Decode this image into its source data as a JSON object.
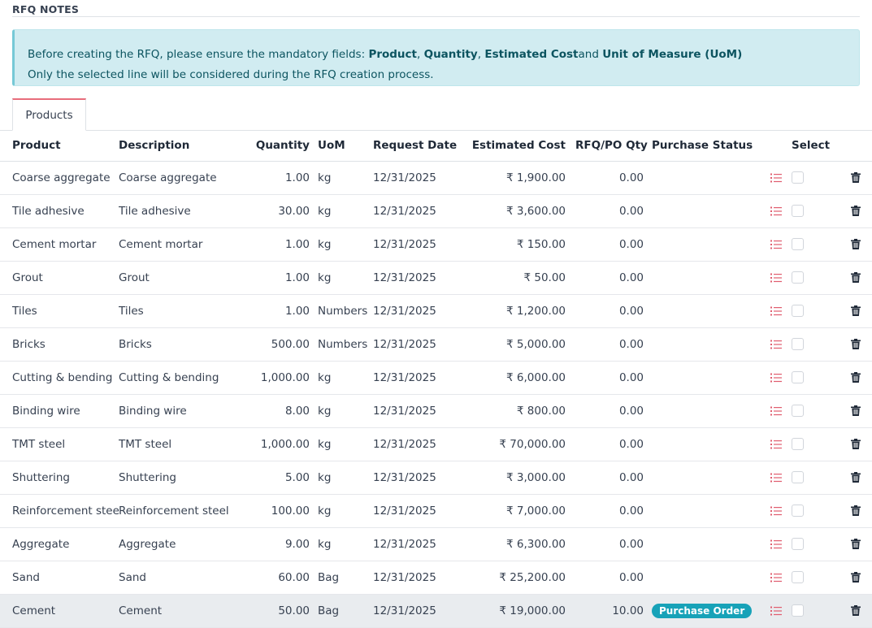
{
  "section": {
    "title": "RFQ NOTES"
  },
  "alert": {
    "line1_prefix": "Before creating the RFQ, please ensure the mandatory fields: ",
    "field_product": "Product",
    "sep1": ", ",
    "field_quantity": "Quantity",
    "sep2": ", ",
    "field_cost": "Estimated Cost",
    "sep3": "and ",
    "field_uom": "Unit of Measure (UoM)",
    "line2": "Only the selected line will be considered during the RFQ creation process."
  },
  "tabs": [
    {
      "label": "Products",
      "active": true
    }
  ],
  "table": {
    "headers": {
      "product": "Product",
      "description": "Description",
      "quantity": "Quantity",
      "uom": "UoM",
      "request_date": "Request Date",
      "estimated_cost": "Estimated Cost",
      "rfq_po_qty": "RFQ/PO Qty",
      "purchase_status": "Purchase Status",
      "select": "Select"
    },
    "rows": [
      {
        "product": "Coarse aggregate",
        "description": "Coarse aggregate",
        "quantity": "1.00",
        "uom": "kg",
        "request_date": "12/31/2025",
        "estimated_cost": "₹ 1,900.00",
        "rfq_po_qty": "0.00",
        "purchase_status": ""
      },
      {
        "product": "Tile adhesive",
        "description": "Tile adhesive",
        "quantity": "30.00",
        "uom": "kg",
        "request_date": "12/31/2025",
        "estimated_cost": "₹ 3,600.00",
        "rfq_po_qty": "0.00",
        "purchase_status": ""
      },
      {
        "product": "Cement mortar",
        "description": "Cement mortar",
        "quantity": "1.00",
        "uom": "kg",
        "request_date": "12/31/2025",
        "estimated_cost": "₹ 150.00",
        "rfq_po_qty": "0.00",
        "purchase_status": ""
      },
      {
        "product": "Grout",
        "description": "Grout",
        "quantity": "1.00",
        "uom": "kg",
        "request_date": "12/31/2025",
        "estimated_cost": "₹ 50.00",
        "rfq_po_qty": "0.00",
        "purchase_status": ""
      },
      {
        "product": "Tiles",
        "description": "Tiles",
        "quantity": "1.00",
        "uom": "Numbers",
        "request_date": "12/31/2025",
        "estimated_cost": "₹ 1,200.00",
        "rfq_po_qty": "0.00",
        "purchase_status": ""
      },
      {
        "product": "Bricks",
        "description": "Bricks",
        "quantity": "500.00",
        "uom": "Numbers",
        "request_date": "12/31/2025",
        "estimated_cost": "₹ 5,000.00",
        "rfq_po_qty": "0.00",
        "purchase_status": ""
      },
      {
        "product": "Cutting & bending",
        "description": "Cutting & bending",
        "quantity": "1,000.00",
        "uom": "kg",
        "request_date": "12/31/2025",
        "estimated_cost": "₹ 6,000.00",
        "rfq_po_qty": "0.00",
        "purchase_status": ""
      },
      {
        "product": "Binding wire",
        "description": "Binding wire",
        "quantity": "8.00",
        "uom": "kg",
        "request_date": "12/31/2025",
        "estimated_cost": "₹ 800.00",
        "rfq_po_qty": "0.00",
        "purchase_status": ""
      },
      {
        "product": "TMT steel",
        "description": "TMT steel",
        "quantity": "1,000.00",
        "uom": "kg",
        "request_date": "12/31/2025",
        "estimated_cost": "₹ 70,000.00",
        "rfq_po_qty": "0.00",
        "purchase_status": ""
      },
      {
        "product": "Shuttering",
        "description": "Shuttering",
        "quantity": "5.00",
        "uom": "kg",
        "request_date": "12/31/2025",
        "estimated_cost": "₹ 3,000.00",
        "rfq_po_qty": "0.00",
        "purchase_status": ""
      },
      {
        "product": "Reinforcement steel",
        "description": "Reinforcement steel",
        "quantity": "100.00",
        "uom": "kg",
        "request_date": "12/31/2025",
        "estimated_cost": "₹ 7,000.00",
        "rfq_po_qty": "0.00",
        "purchase_status": ""
      },
      {
        "product": "Aggregate",
        "description": "Aggregate",
        "quantity": "9.00",
        "uom": "kg",
        "request_date": "12/31/2025",
        "estimated_cost": "₹ 6,300.00",
        "rfq_po_qty": "0.00",
        "purchase_status": ""
      },
      {
        "product": "Sand",
        "description": "Sand",
        "quantity": "60.00",
        "uom": "Bag",
        "request_date": "12/31/2025",
        "estimated_cost": "₹ 25,200.00",
        "rfq_po_qty": "0.00",
        "purchase_status": ""
      },
      {
        "product": "Cement",
        "description": "Cement",
        "quantity": "50.00",
        "uom": "Bag",
        "request_date": "12/31/2025",
        "estimated_cost": "₹ 19,000.00",
        "rfq_po_qty": "10.00",
        "purchase_status": "Purchase Order",
        "highlighted": true
      }
    ]
  },
  "icons": {
    "details": "list-icon",
    "select": "checkbox-icon",
    "delete": "trash-icon"
  },
  "colors": {
    "alert_bg": "#d1ecf1",
    "alert_text": "#0c5460",
    "tab_accent": "#e86d7b",
    "list_icon": "#e05d6f",
    "badge": "#17a2b8"
  }
}
